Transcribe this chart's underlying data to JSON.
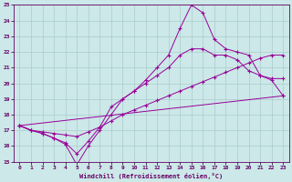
{
  "bg_color": "#cce8e8",
  "grid_color": "#aacccc",
  "line_color": "#990099",
  "xlabel": "Windchill (Refroidissement éolien,°C)",
  "xlim_min": -0.5,
  "xlim_max": 23.5,
  "ylim_min": 15,
  "ylim_max": 25,
  "xticks": [
    0,
    1,
    2,
    3,
    4,
    5,
    6,
    7,
    8,
    9,
    10,
    11,
    12,
    13,
    14,
    15,
    16,
    17,
    18,
    19,
    20,
    21,
    22,
    23
  ],
  "yticks": [
    15,
    16,
    17,
    18,
    19,
    20,
    21,
    22,
    23,
    24,
    25
  ],
  "line1_x": [
    0,
    1,
    2,
    3,
    4,
    5,
    6,
    7,
    8,
    9,
    10,
    11,
    12,
    13,
    14,
    15,
    16,
    17,
    18,
    19,
    20,
    21,
    22,
    23
  ],
  "line1_y": [
    17.3,
    17.0,
    16.8,
    16.5,
    16.2,
    15.5,
    16.3,
    17.2,
    18.5,
    19.0,
    19.5,
    20.0,
    20.5,
    21.0,
    21.8,
    22.2,
    22.2,
    21.8,
    21.8,
    21.5,
    20.8,
    20.5,
    20.3,
    20.3
  ],
  "line2_x": [
    0,
    1,
    2,
    3,
    4,
    5,
    6,
    7,
    8,
    9,
    10,
    11,
    12,
    13,
    14,
    15,
    16,
    17,
    18,
    19,
    20,
    21,
    22,
    23
  ],
  "line2_y": [
    17.3,
    17.0,
    16.8,
    16.5,
    16.1,
    14.8,
    16.0,
    17.0,
    18.0,
    19.0,
    19.5,
    20.2,
    21.0,
    21.8,
    23.5,
    25.0,
    24.5,
    22.8,
    22.2,
    22.0,
    21.8,
    20.5,
    20.2,
    19.2
  ],
  "line3_x": [
    0,
    23
  ],
  "line3_y": [
    17.3,
    19.2
  ],
  "line4_x": [
    0,
    1,
    2,
    3,
    4,
    5,
    6,
    7,
    8,
    9,
    10,
    11,
    12,
    13,
    14,
    15,
    16,
    17,
    18,
    19,
    20,
    21,
    22,
    23
  ],
  "line4_y": [
    17.3,
    17.0,
    16.9,
    16.8,
    16.7,
    16.6,
    16.9,
    17.2,
    17.6,
    18.0,
    18.3,
    18.6,
    18.9,
    19.2,
    19.5,
    19.8,
    20.1,
    20.4,
    20.7,
    21.0,
    21.3,
    21.6,
    21.8,
    21.8
  ]
}
